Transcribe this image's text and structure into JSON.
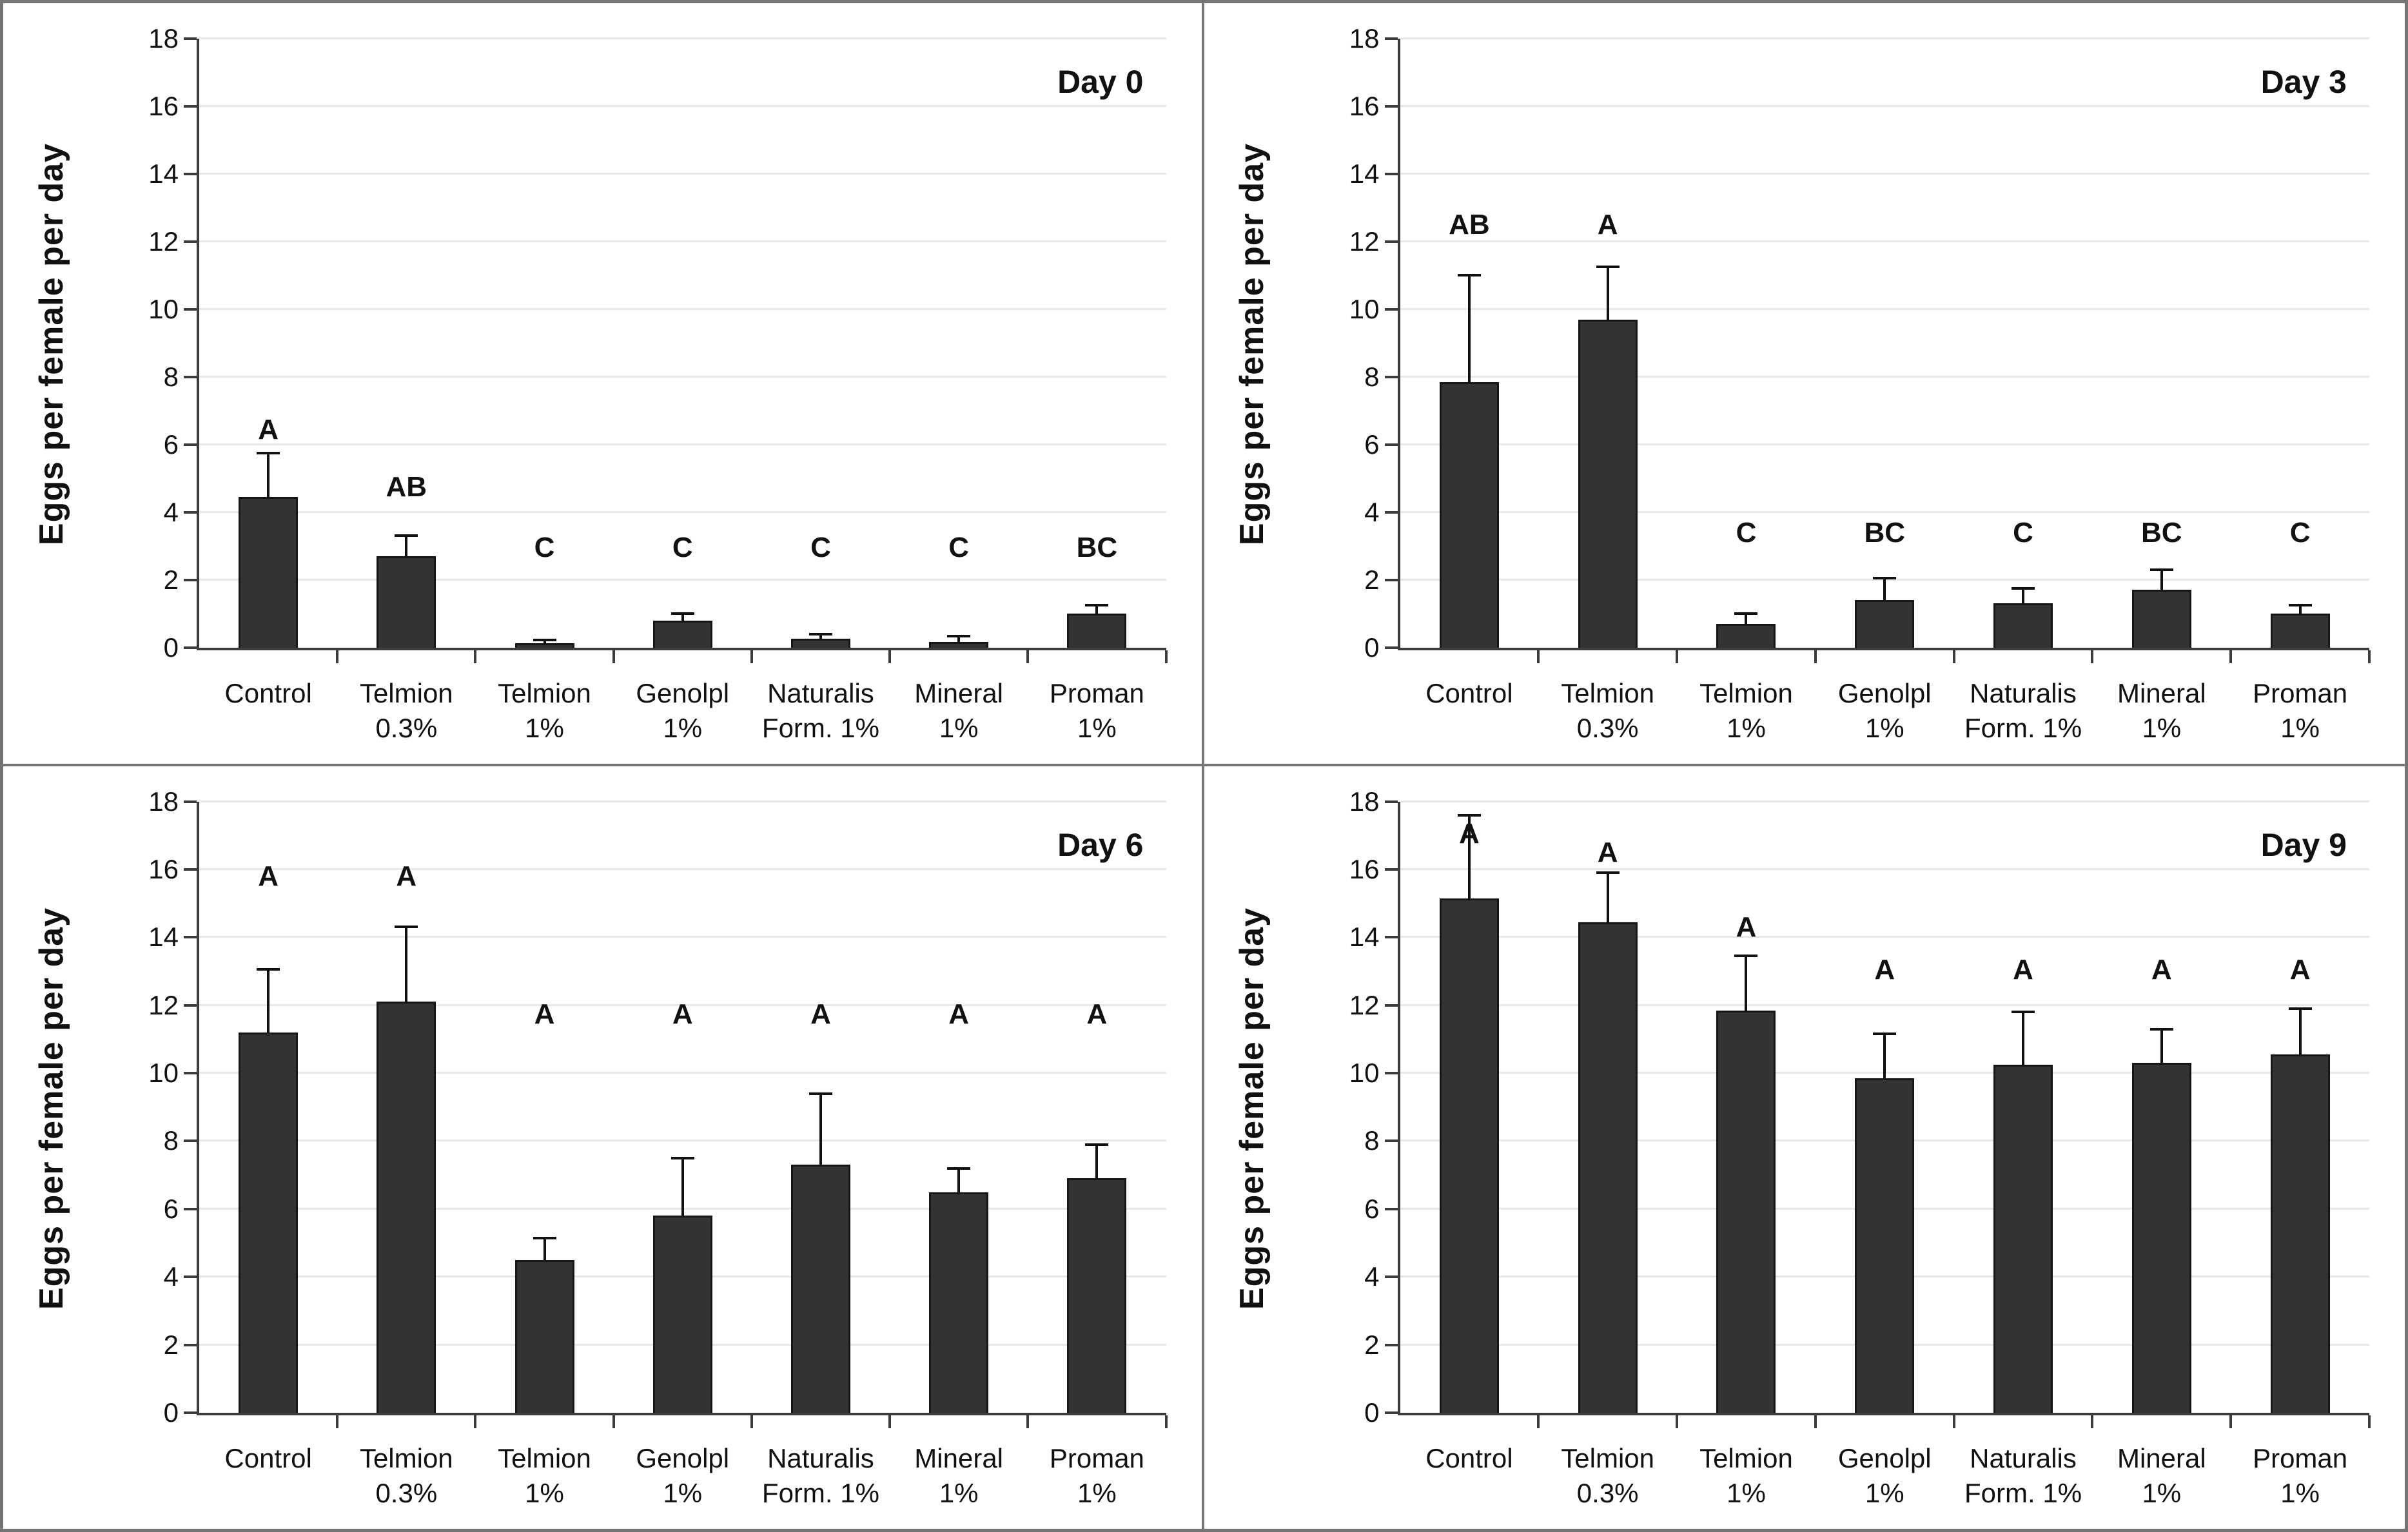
{
  "figure": {
    "ylabel": "Eggs per female per day",
    "y_axis": {
      "min": 0,
      "max": 18,
      "step": 2,
      "tick_labels": [
        "0",
        "2",
        "4",
        "6",
        "8",
        "10",
        "12",
        "14",
        "16",
        "18"
      ]
    },
    "categories_display": [
      [
        "Control",
        ""
      ],
      [
        "Telmion",
        "0.3%"
      ],
      [
        "Telmion",
        "1%"
      ],
      [
        "Genolpl",
        "1%"
      ],
      [
        "Naturalis",
        "Form. 1%"
      ],
      [
        "Mineral",
        "1%"
      ],
      [
        "Proman",
        "1%"
      ]
    ],
    "colors": {
      "bar_fill": "#333333",
      "bar_border": "#161616",
      "axis": "#3c3c3c",
      "gridline": "#e6e9ec",
      "error_bar": "#111111",
      "divider": "#757575",
      "background": "#ffffff",
      "text": "#111111"
    }
  },
  "chart_data": [
    {
      "type": "bar",
      "title": "Day 0",
      "ylabel": "Eggs per female per day",
      "ylim": [
        0,
        18
      ],
      "ytick_step": 2,
      "grid": true,
      "categories": [
        "Control",
        "Telmion 0.3%",
        "Telmion 1%",
        "Genolpl 1%",
        "Naturalis Form. 1%",
        "Mineral 1%",
        "Proman 1%"
      ],
      "values": [
        4.45,
        2.7,
        0.12,
        0.8,
        0.25,
        0.17,
        1.0
      ],
      "error_bar_top": [
        5.75,
        3.3,
        0.22,
        1.0,
        0.4,
        0.33,
        1.25
      ],
      "sig_letters": [
        "A",
        "AB",
        "C",
        "C",
        "C",
        "C",
        "BC"
      ],
      "sig_letter_y": [
        6.0,
        4.3,
        2.5,
        2.5,
        2.5,
        2.5,
        2.5
      ]
    },
    {
      "type": "bar",
      "title": "Day 3",
      "ylabel": "Eggs per female per day",
      "ylim": [
        0,
        18
      ],
      "ytick_step": 2,
      "grid": true,
      "categories": [
        "Control",
        "Telmion 0.3%",
        "Telmion 1%",
        "Genolpl 1%",
        "Naturalis Form. 1%",
        "Mineral 1%",
        "Proman 1%"
      ],
      "values": [
        7.85,
        9.7,
        0.7,
        1.4,
        1.3,
        1.7,
        1.0
      ],
      "error_bar_top": [
        11.0,
        11.25,
        1.0,
        2.05,
        1.75,
        2.3,
        1.25
      ],
      "sig_letters": [
        "AB",
        "A",
        "C",
        "BC",
        "C",
        "BC",
        "C"
      ],
      "sig_letter_y": [
        12.05,
        12.05,
        2.95,
        2.95,
        2.95,
        2.95,
        2.95
      ]
    },
    {
      "type": "bar",
      "title": "Day 6",
      "ylabel": "Eggs per female per day",
      "ylim": [
        0,
        18
      ],
      "ytick_step": 2,
      "grid": true,
      "categories": [
        "Control",
        "Telmion 0.3%",
        "Telmion 1%",
        "Genolpl 1%",
        "Naturalis Form. 1%",
        "Mineral 1%",
        "Proman 1%"
      ],
      "values": [
        11.2,
        12.1,
        4.5,
        5.8,
        7.3,
        6.5,
        6.9
      ],
      "error_bar_top": [
        13.05,
        14.3,
        5.15,
        7.5,
        9.4,
        7.2,
        7.9
      ],
      "sig_letters": [
        "A",
        "A",
        "A",
        "A",
        "A",
        "A",
        "A"
      ],
      "sig_letter_y": [
        15.35,
        15.35,
        11.3,
        11.3,
        11.3,
        11.3,
        11.3
      ]
    },
    {
      "type": "bar",
      "title": "Day 9",
      "ylabel": "Eggs per female per day",
      "ylim": [
        0,
        18
      ],
      "ytick_step": 2,
      "grid": true,
      "categories": [
        "Control",
        "Telmion 0.3%",
        "Telmion 1%",
        "Genolpl 1%",
        "Naturalis Form. 1%",
        "Mineral 1%",
        "Proman 1%"
      ],
      "values": [
        15.15,
        14.45,
        11.85,
        9.85,
        10.25,
        10.3,
        10.55
      ],
      "error_bar_top": [
        17.6,
        15.9,
        13.45,
        11.15,
        11.8,
        11.3,
        11.9
      ],
      "sig_letters": [
        "A",
        "A",
        "A",
        "A",
        "A",
        "A",
        "A"
      ],
      "sig_letter_y": [
        16.6,
        16.05,
        13.85,
        12.6,
        12.6,
        12.6,
        12.6
      ]
    }
  ]
}
